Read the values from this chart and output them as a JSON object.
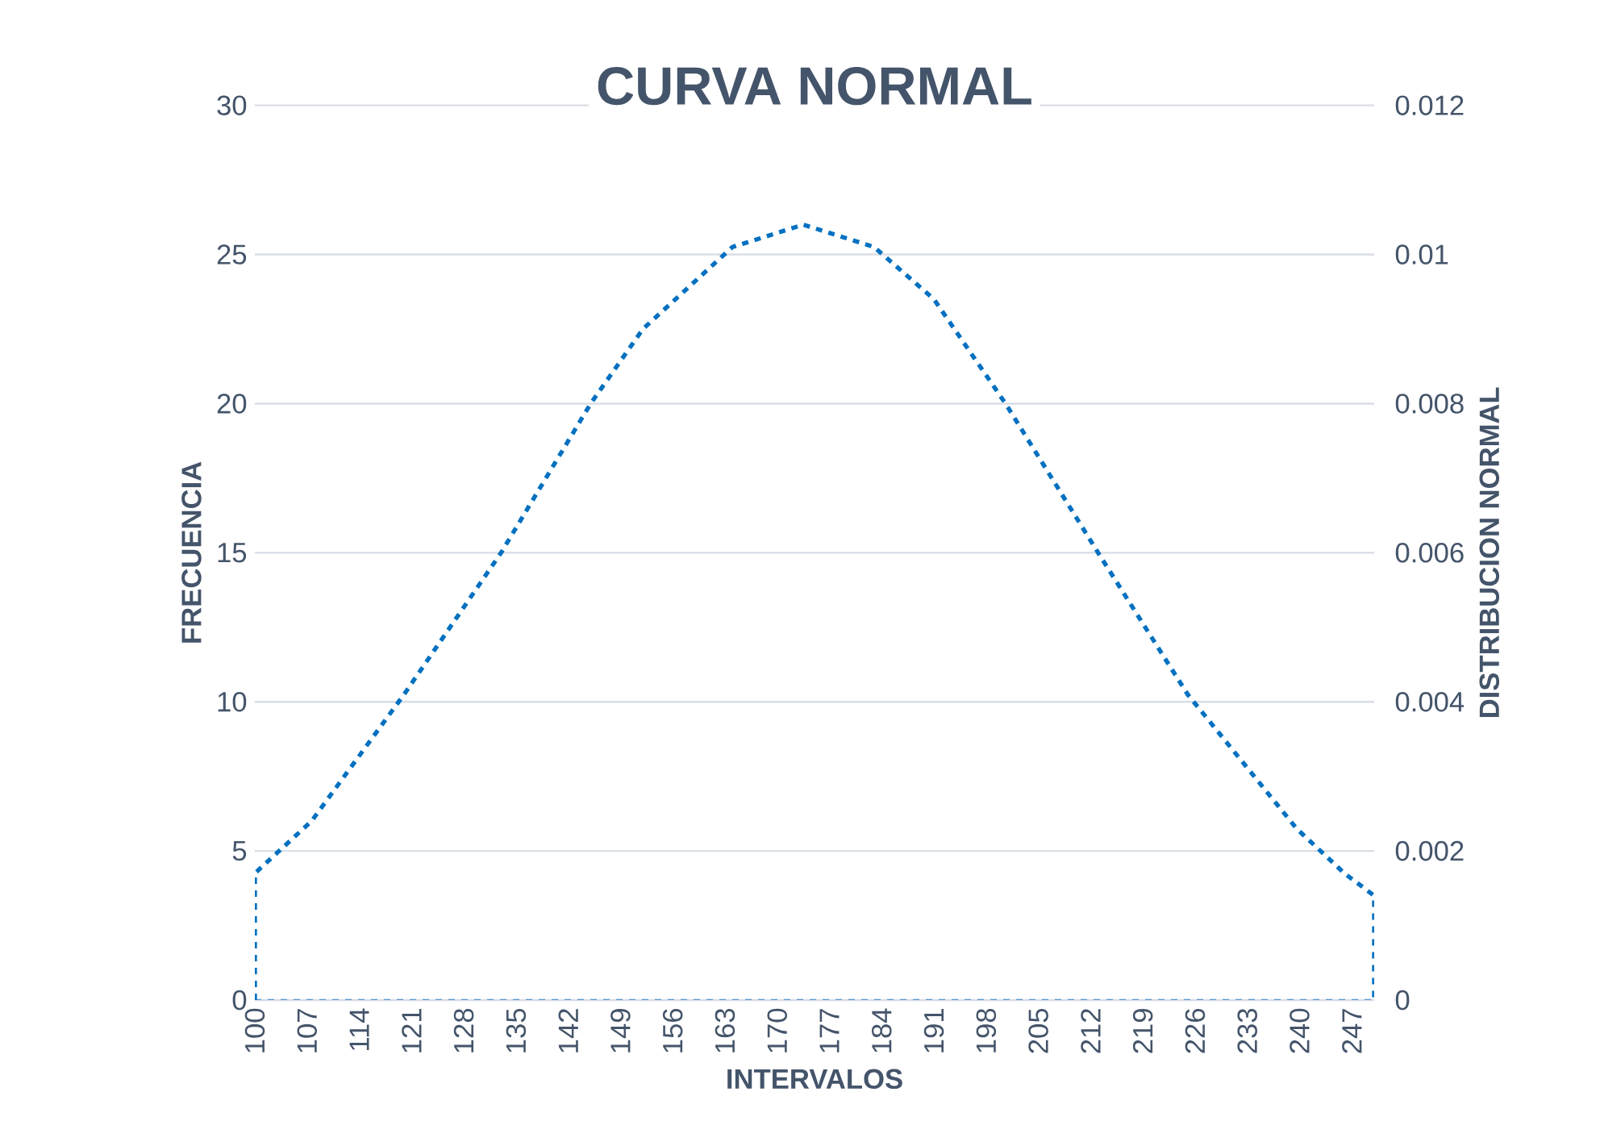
{
  "chart_data": {
    "type": "line",
    "title": "CURVA NORMAL",
    "xlabel": "INTERVALOS",
    "ylabel": "FRECUENCIA",
    "y2label": "DISTRIBUCION NORMAL",
    "xlim": [
      100,
      250
    ],
    "xticks": [
      100,
      107,
      114,
      121,
      128,
      135,
      142,
      149,
      156,
      163,
      170,
      177,
      184,
      191,
      198,
      205,
      212,
      219,
      226,
      233,
      240,
      247
    ],
    "ylim": [
      0,
      30
    ],
    "yticks": [
      0,
      5,
      10,
      15,
      20,
      25,
      30
    ],
    "y2lim": [
      0,
      0.012
    ],
    "y2ticks": [
      0,
      0.002,
      0.004,
      0.006,
      0.008,
      0.01,
      0.012
    ],
    "grid": "y",
    "line_style": "dashed",
    "series": [
      {
        "axis": "y",
        "color": "#5b9bd5",
        "x": [
          100,
          250
        ],
        "values": [
          0,
          0
        ]
      },
      {
        "axis": "y2",
        "color": "#0070c0",
        "x": [
          100,
          100,
          107.6,
          120,
          133,
          145,
          152,
          164,
          173.5,
          183,
          191,
          200.6,
          213,
          225,
          239.6,
          246,
          250,
          250
        ],
        "values": [
          0,
          0.0017,
          0.0024,
          0.0041,
          0.006,
          0.008,
          0.009,
          0.0101,
          0.0104,
          0.0101,
          0.0094,
          0.008,
          0.006,
          0.0041,
          0.0023,
          0.0017,
          0.0014,
          0
        ]
      }
    ]
  }
}
